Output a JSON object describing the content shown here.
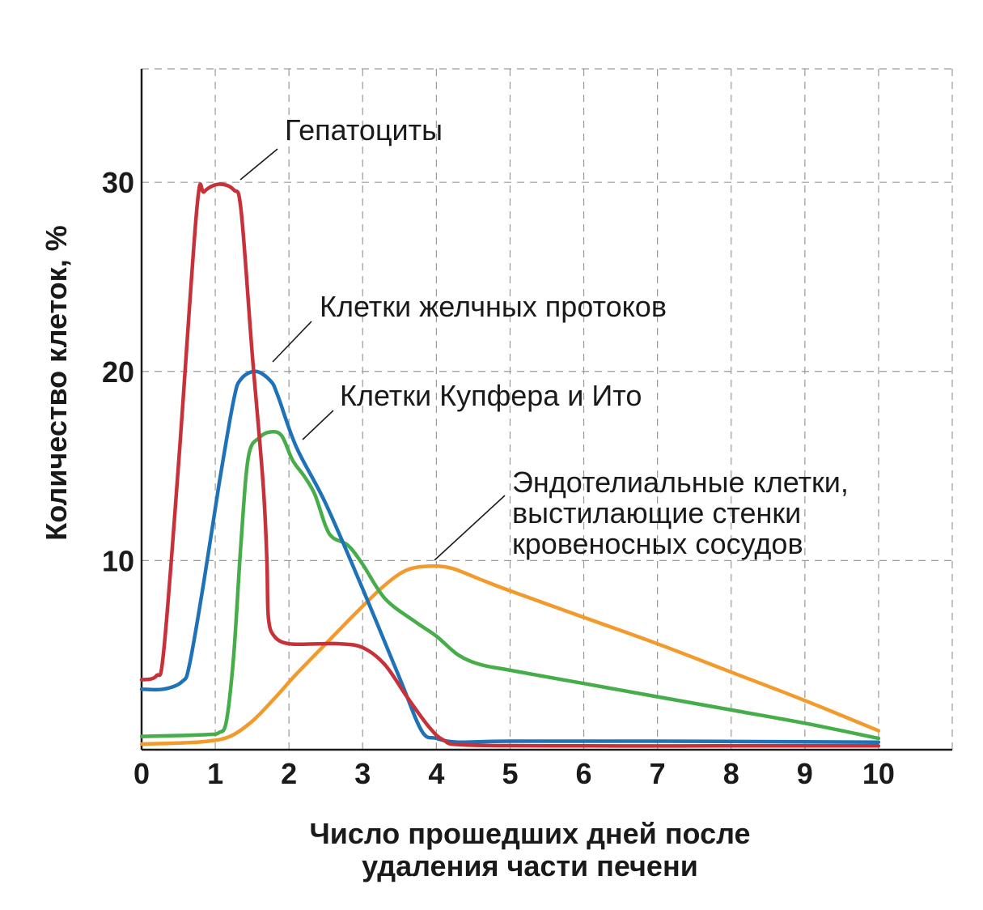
{
  "chart_data": {
    "type": "line",
    "title": "",
    "xlabel_lines": [
      "Число прошедших дней после",
      "удаления части печени"
    ],
    "ylabel": "Количество клеток, %",
    "xlim": [
      0,
      11
    ],
    "ylim": [
      0,
      36
    ],
    "x_ticks": [
      0,
      1,
      2,
      3,
      4,
      5,
      6,
      7,
      8,
      9,
      10
    ],
    "y_ticks": [
      10,
      20,
      30
    ],
    "grid": true,
    "x_grid": [
      1,
      2,
      3,
      4,
      5,
      6,
      7,
      8,
      9,
      10,
      11
    ],
    "y_grid": [
      10,
      20,
      30,
      36
    ],
    "series": [
      {
        "name": "Гепатоциты",
        "label_lines": [
          "Гепатоциты"
        ],
        "color": "#c7323a",
        "points": [
          [
            0,
            3.7
          ],
          [
            0.2,
            3.9
          ],
          [
            0.3,
            5.2
          ],
          [
            0.5,
            15
          ],
          [
            0.75,
            28.6
          ],
          [
            0.85,
            29.5
          ],
          [
            1.05,
            29.9
          ],
          [
            1.25,
            29.6
          ],
          [
            1.35,
            28.5
          ],
          [
            1.5,
            21
          ],
          [
            1.65,
            14
          ],
          [
            1.7,
            10
          ],
          [
            1.72,
            7.0
          ],
          [
            1.8,
            6.0
          ],
          [
            2.0,
            5.6
          ],
          [
            2.4,
            5.6
          ],
          [
            2.7,
            5.6
          ],
          [
            3.0,
            5.4
          ],
          [
            3.3,
            4.5
          ],
          [
            3.6,
            2.8
          ],
          [
            3.9,
            1.2
          ],
          [
            4.1,
            0.5
          ],
          [
            4.4,
            0.25
          ],
          [
            6,
            0.2
          ],
          [
            8,
            0.2
          ],
          [
            10,
            0.2
          ]
        ]
      },
      {
        "name": "Клетки желчных протоков",
        "label_lines": [
          "Клетки желчных протоков"
        ],
        "color": "#1f72b8",
        "points": [
          [
            0,
            3.2
          ],
          [
            0.3,
            3.2
          ],
          [
            0.55,
            3.6
          ],
          [
            0.65,
            4.5
          ],
          [
            0.85,
            9
          ],
          [
            1.05,
            14
          ],
          [
            1.25,
            18.5
          ],
          [
            1.35,
            19.6
          ],
          [
            1.55,
            20.0
          ],
          [
            1.75,
            19.5
          ],
          [
            1.85,
            18.7
          ],
          [
            2.1,
            16
          ],
          [
            2.5,
            13
          ],
          [
            3.0,
            8.5
          ],
          [
            3.5,
            3.8
          ],
          [
            3.8,
            1.0
          ],
          [
            4.0,
            0.6
          ],
          [
            4.3,
            0.4
          ],
          [
            5,
            0.45
          ],
          [
            7,
            0.45
          ],
          [
            10,
            0.4
          ]
        ]
      },
      {
        "name": "Клетки Купфера и Ито",
        "label_lines": [
          "Клетки Купфера и Ито"
        ],
        "color": "#46ad4a",
        "points": [
          [
            0,
            0.7
          ],
          [
            0.5,
            0.75
          ],
          [
            0.9,
            0.8
          ],
          [
            1.05,
            0.9
          ],
          [
            1.15,
            1.5
          ],
          [
            1.25,
            5
          ],
          [
            1.35,
            11
          ],
          [
            1.45,
            15.5
          ],
          [
            1.6,
            16.5
          ],
          [
            1.75,
            16.8
          ],
          [
            1.9,
            16.6
          ],
          [
            2.05,
            15.3
          ],
          [
            2.2,
            14.5
          ],
          [
            2.35,
            13.5
          ],
          [
            2.5,
            11.8
          ],
          [
            2.6,
            11.2
          ],
          [
            2.8,
            10.8
          ],
          [
            3.0,
            9.8
          ],
          [
            3.3,
            8.0
          ],
          [
            3.7,
            6.8
          ],
          [
            4.0,
            6.0
          ],
          [
            4.3,
            5.0
          ],
          [
            4.6,
            4.5
          ],
          [
            5,
            4.2
          ],
          [
            6,
            3.5
          ],
          [
            7,
            2.8
          ],
          [
            8,
            2.1
          ],
          [
            9,
            1.4
          ],
          [
            10,
            0.6
          ]
        ]
      },
      {
        "name": "Эндотелиальные клетки, выстилающие стенки кровеносных сосудов",
        "label_lines": [
          "Эндотелиальные клетки,",
          "выстилающие стенки",
          "кровеносных сосудов"
        ],
        "color": "#f29b2c",
        "points": [
          [
            0,
            0.3
          ],
          [
            0.5,
            0.35
          ],
          [
            0.9,
            0.45
          ],
          [
            1.2,
            0.7
          ],
          [
            1.5,
            1.5
          ],
          [
            1.8,
            2.7
          ],
          [
            2.1,
            4.0
          ],
          [
            2.5,
            5.6
          ],
          [
            2.9,
            7.2
          ],
          [
            3.3,
            8.7
          ],
          [
            3.6,
            9.5
          ],
          [
            3.9,
            9.7
          ],
          [
            4.2,
            9.6
          ],
          [
            4.6,
            9.0
          ],
          [
            5.0,
            8.4
          ],
          [
            6,
            7.0
          ],
          [
            7,
            5.6
          ],
          [
            8,
            4.1
          ],
          [
            9,
            2.6
          ],
          [
            10,
            1.0
          ]
        ]
      }
    ]
  }
}
